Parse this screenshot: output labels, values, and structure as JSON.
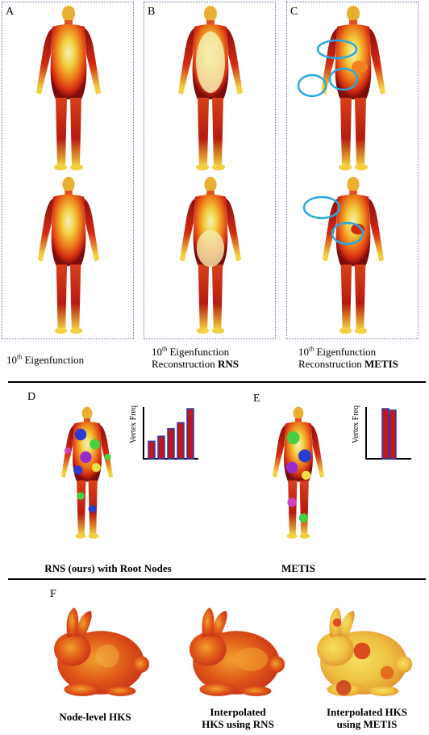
{
  "colors": {
    "hot_dark": "#7a0c0c",
    "hot_red": "#d42a12",
    "hot_orange": "#ec7a1a",
    "hot_yellow": "#f2d040",
    "hot_pale": "#f4ecb0",
    "highlight_circle": "#29a9df",
    "bar_fill": "#c0161c",
    "bar_edge": "#2b3bb0",
    "panel_border": "#5a7ba6"
  },
  "panels": [
    {
      "label": "A",
      "caption_line1_pre": "10",
      "caption_line1_sup": "th",
      "caption_line1_post": " Eigenfunction",
      "caption_line2_pre": "",
      "caption_line2_bold": ""
    },
    {
      "label": "B",
      "caption_line1_pre": "10",
      "caption_line1_sup": "th",
      "caption_line1_post": " Eigenfunction",
      "caption_line2_pre": "Reconstruction ",
      "caption_line2_bold": "RNS"
    },
    {
      "label": "C",
      "caption_line1_pre": "10",
      "caption_line1_sup": "th",
      "caption_line1_post": " Eigenfunction",
      "caption_line2_pre": "Reconstruction ",
      "caption_line2_bold": "METIS"
    }
  ],
  "section_d": {
    "label": "D",
    "caption": "RNS (ours) with Root Nodes",
    "histogram": {
      "ylabel": "Vertex Freq",
      "values": [
        0.35,
        0.45,
        0.6,
        0.72,
        1.0
      ]
    }
  },
  "section_e": {
    "label": "E",
    "caption": "METIS",
    "histogram": {
      "ylabel": "Vertex Freq",
      "values": [
        1.0,
        0.97
      ]
    }
  },
  "section_f": {
    "label": "F",
    "captions": [
      {
        "line1": "Node-level HKS",
        "line2": ""
      },
      {
        "line1": "Interpolated",
        "line2": "HKS using RNS"
      },
      {
        "line1": "Interpolated HKS",
        "line2": "using METIS"
      }
    ]
  }
}
